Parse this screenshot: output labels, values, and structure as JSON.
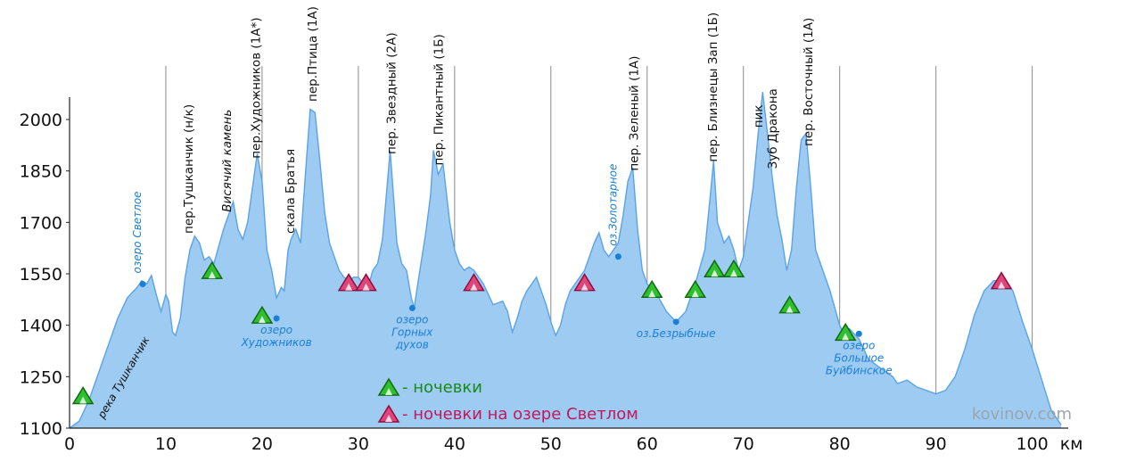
{
  "chart_data": {
    "type": "area",
    "xlim": [
      0,
      103
    ],
    "ylim": [
      1100,
      2130
    ],
    "x_ticks": [
      0,
      10,
      20,
      30,
      40,
      50,
      60,
      70,
      80,
      90,
      100
    ],
    "x_tick_labels": [
      "0",
      "10",
      "20",
      "30",
      "40",
      "50",
      "60",
      "70",
      "80",
      "90",
      "100"
    ],
    "x_unit": "км",
    "y_ticks": [
      1100,
      1250,
      1400,
      1550,
      1700,
      1850,
      2000
    ],
    "grid": "vertical",
    "fill_color": "#9ecbf2",
    "line_color": "#5aa3e6",
    "profile": [
      [
        0,
        1100
      ],
      [
        1,
        1120
      ],
      [
        2,
        1180
      ],
      [
        3,
        1260
      ],
      [
        4,
        1340
      ],
      [
        4.5,
        1380
      ],
      [
        5,
        1420
      ],
      [
        6,
        1480
      ],
      [
        7,
        1510
      ],
      [
        7.5,
        1530
      ],
      [
        8,
        1520
      ],
      [
        8.5,
        1545
      ],
      [
        9,
        1490
      ],
      [
        9.5,
        1440
      ],
      [
        10,
        1490
      ],
      [
        10.3,
        1470
      ],
      [
        10.7,
        1380
      ],
      [
        11,
        1370
      ],
      [
        11.5,
        1420
      ],
      [
        12,
        1540
      ],
      [
        12.5,
        1620
      ],
      [
        13,
        1660
      ],
      [
        13.5,
        1640
      ],
      [
        14,
        1590
      ],
      [
        14.5,
        1600
      ],
      [
        15,
        1580
      ],
      [
        15.5,
        1630
      ],
      [
        16,
        1680
      ],
      [
        16.5,
        1720
      ],
      [
        17,
        1760
      ],
      [
        17.5,
        1680
      ],
      [
        18,
        1650
      ],
      [
        18.5,
        1700
      ],
      [
        19,
        1800
      ],
      [
        19.5,
        1900
      ],
      [
        20,
        1820
      ],
      [
        20.5,
        1620
      ],
      [
        21,
        1560
      ],
      [
        21.5,
        1480
      ],
      [
        22,
        1510
      ],
      [
        22.3,
        1500
      ],
      [
        22.7,
        1620
      ],
      [
        23,
        1650
      ],
      [
        23.5,
        1680
      ],
      [
        24,
        1640
      ],
      [
        24.5,
        1840
      ],
      [
        25,
        2030
      ],
      [
        25.5,
        2020
      ],
      [
        26,
        1880
      ],
      [
        26.5,
        1730
      ],
      [
        27,
        1640
      ],
      [
        27.5,
        1600
      ],
      [
        28,
        1560
      ],
      [
        28.5,
        1540
      ],
      [
        29,
        1530
      ],
      [
        29.5,
        1540
      ],
      [
        30,
        1540
      ],
      [
        30.5,
        1520
      ],
      [
        31,
        1510
      ],
      [
        31.5,
        1560
      ],
      [
        32,
        1580
      ],
      [
        32.5,
        1650
      ],
      [
        33,
        1810
      ],
      [
        33.3,
        1910
      ],
      [
        33.7,
        1760
      ],
      [
        34,
        1640
      ],
      [
        34.5,
        1580
      ],
      [
        35,
        1560
      ],
      [
        35.5,
        1480
      ],
      [
        35.8,
        1450
      ],
      [
        36,
        1490
      ],
      [
        36.5,
        1580
      ],
      [
        37,
        1670
      ],
      [
        37.5,
        1780
      ],
      [
        37.8,
        1910
      ],
      [
        38.3,
        1840
      ],
      [
        38.8,
        1870
      ],
      [
        39.5,
        1700
      ],
      [
        40,
        1620
      ],
      [
        40.5,
        1580
      ],
      [
        41,
        1560
      ],
      [
        41.5,
        1570
      ],
      [
        42,
        1560
      ],
      [
        43,
        1520
      ],
      [
        44,
        1460
      ],
      [
        45,
        1470
      ],
      [
        45.5,
        1440
      ],
      [
        46,
        1380
      ],
      [
        46.5,
        1420
      ],
      [
        47,
        1470
      ],
      [
        47.5,
        1500
      ],
      [
        48,
        1520
      ],
      [
        48.5,
        1540
      ],
      [
        49,
        1500
      ],
      [
        49.5,
        1460
      ],
      [
        50,
        1410
      ],
      [
        50.5,
        1370
      ],
      [
        51,
        1400
      ],
      [
        51.5,
        1460
      ],
      [
        52,
        1500
      ],
      [
        53,
        1540
      ],
      [
        53.5,
        1560
      ],
      [
        54,
        1600
      ],
      [
        54.5,
        1640
      ],
      [
        55,
        1670
      ],
      [
        55.5,
        1620
      ],
      [
        56,
        1600
      ],
      [
        56.5,
        1620
      ],
      [
        57,
        1640
      ],
      [
        57.5,
        1720
      ],
      [
        58,
        1820
      ],
      [
        58.5,
        1860
      ],
      [
        59,
        1680
      ],
      [
        59.5,
        1560
      ],
      [
        60,
        1520
      ],
      [
        61,
        1490
      ],
      [
        62,
        1440
      ],
      [
        63,
        1410
      ],
      [
        64,
        1440
      ],
      [
        65,
        1520
      ],
      [
        66,
        1620
      ],
      [
        66.5,
        1760
      ],
      [
        66.9,
        1880
      ],
      [
        67.3,
        1700
      ],
      [
        68,
        1640
      ],
      [
        68.5,
        1660
      ],
      [
        69,
        1620
      ],
      [
        69.5,
        1560
      ],
      [
        70,
        1600
      ],
      [
        71,
        1800
      ],
      [
        71.5,
        1950
      ],
      [
        72,
        2080
      ],
      [
        72.5,
        1960
      ],
      [
        73,
        1830
      ],
      [
        73.5,
        1720
      ],
      [
        74,
        1650
      ],
      [
        74.5,
        1560
      ],
      [
        75,
        1620
      ],
      [
        75.5,
        1800
      ],
      [
        76,
        1940
      ],
      [
        76.5,
        1960
      ],
      [
        77,
        1800
      ],
      [
        77.5,
        1620
      ],
      [
        78,
        1580
      ],
      [
        79,
        1500
      ],
      [
        80,
        1400
      ],
      [
        80.5,
        1370
      ],
      [
        81,
        1390
      ],
      [
        82,
        1360
      ],
      [
        83,
        1300
      ],
      [
        84,
        1280
      ],
      [
        85,
        1260
      ],
      [
        85.5,
        1250
      ],
      [
        86,
        1230
      ],
      [
        87,
        1240
      ],
      [
        88,
        1220
      ],
      [
        89,
        1210
      ],
      [
        90,
        1200
      ],
      [
        91,
        1210
      ],
      [
        92,
        1250
      ],
      [
        93,
        1330
      ],
      [
        94,
        1430
      ],
      [
        95,
        1500
      ],
      [
        96,
        1530
      ],
      [
        97,
        1530
      ],
      [
        98,
        1500
      ],
      [
        99,
        1410
      ],
      [
        100,
        1330
      ],
      [
        101,
        1240
      ],
      [
        102,
        1150
      ],
      [
        103,
        1110
      ]
    ],
    "passes": [
      {
        "x": 12.3,
        "label": "пер.Тушканчик (н/к)",
        "italic": false
      },
      {
        "x": 16.3,
        "label": "Висячий камень",
        "italic": true
      },
      {
        "x": 19.3,
        "label": "пер.Художников (1А*)",
        "italic": false
      },
      {
        "x": 22.9,
        "label": "скала Братья",
        "italic": false
      },
      {
        "x": 25.2,
        "label": "пер.Птица (1А)",
        "italic": false
      },
      {
        "x": 33.4,
        "label": "пер. Звездный (2А)",
        "italic": false
      },
      {
        "x": 38.3,
        "label": "пер. Пикантный (1Б)",
        "italic": false
      },
      {
        "x": 58.6,
        "label": "пер. Зеленый (1А)",
        "italic": false
      },
      {
        "x": 66.8,
        "label": "пер. Близнецы Зап (1Б)",
        "italic": false
      },
      {
        "x": 71.5,
        "label": "пик",
        "italic": false
      },
      {
        "x": 73.0,
        "label": "Зуб Дракона",
        "italic": false
      },
      {
        "x": 76.7,
        "label": "пер. Восточный (1А)",
        "italic": false
      }
    ],
    "lakes": [
      {
        "x": 7.6,
        "y": 1520,
        "lines": [
          "озеро Светлое"
        ],
        "vertical": true
      },
      {
        "x": 21.5,
        "y": 1420,
        "lines": [
          "озеро",
          "Художников"
        ],
        "vertical": false
      },
      {
        "x": 35.6,
        "y": 1450,
        "lines": [
          "озеро",
          "Горных",
          "духов"
        ],
        "vertical": false
      },
      {
        "x": 57.0,
        "y": 1600,
        "lines": [
          "оз.Золотарное"
        ],
        "vertical": true
      },
      {
        "x": 63.0,
        "y": 1410,
        "lines": [
          "оз.Безрыбные"
        ],
        "vertical": false
      },
      {
        "x": 82.0,
        "y": 1375,
        "lines": [
          "озеро",
          "Большое",
          "Буйбинское"
        ],
        "vertical": false
      }
    ],
    "river": {
      "label": "река Тушканчик",
      "x": 1.5
    },
    "camps_green": [
      [
        1.4,
        1195
      ],
      [
        14.8,
        1560
      ],
      [
        20.0,
        1430
      ],
      [
        60.5,
        1505
      ],
      [
        65.0,
        1505
      ],
      [
        67.0,
        1565
      ],
      [
        69.0,
        1565
      ],
      [
        74.8,
        1460
      ],
      [
        80.6,
        1380
      ]
    ],
    "camps_magenta": [
      [
        29.0,
        1525
      ],
      [
        30.8,
        1525
      ],
      [
        42.0,
        1525
      ],
      [
        53.5,
        1525
      ],
      [
        96.8,
        1530
      ]
    ],
    "legend": [
      {
        "label": "- ночевки",
        "color": "#1a8a1a"
      },
      {
        "label": "- ночевки на озере Светлом",
        "color": "#c2185b"
      }
    ],
    "watermark": "kovinov.com"
  }
}
